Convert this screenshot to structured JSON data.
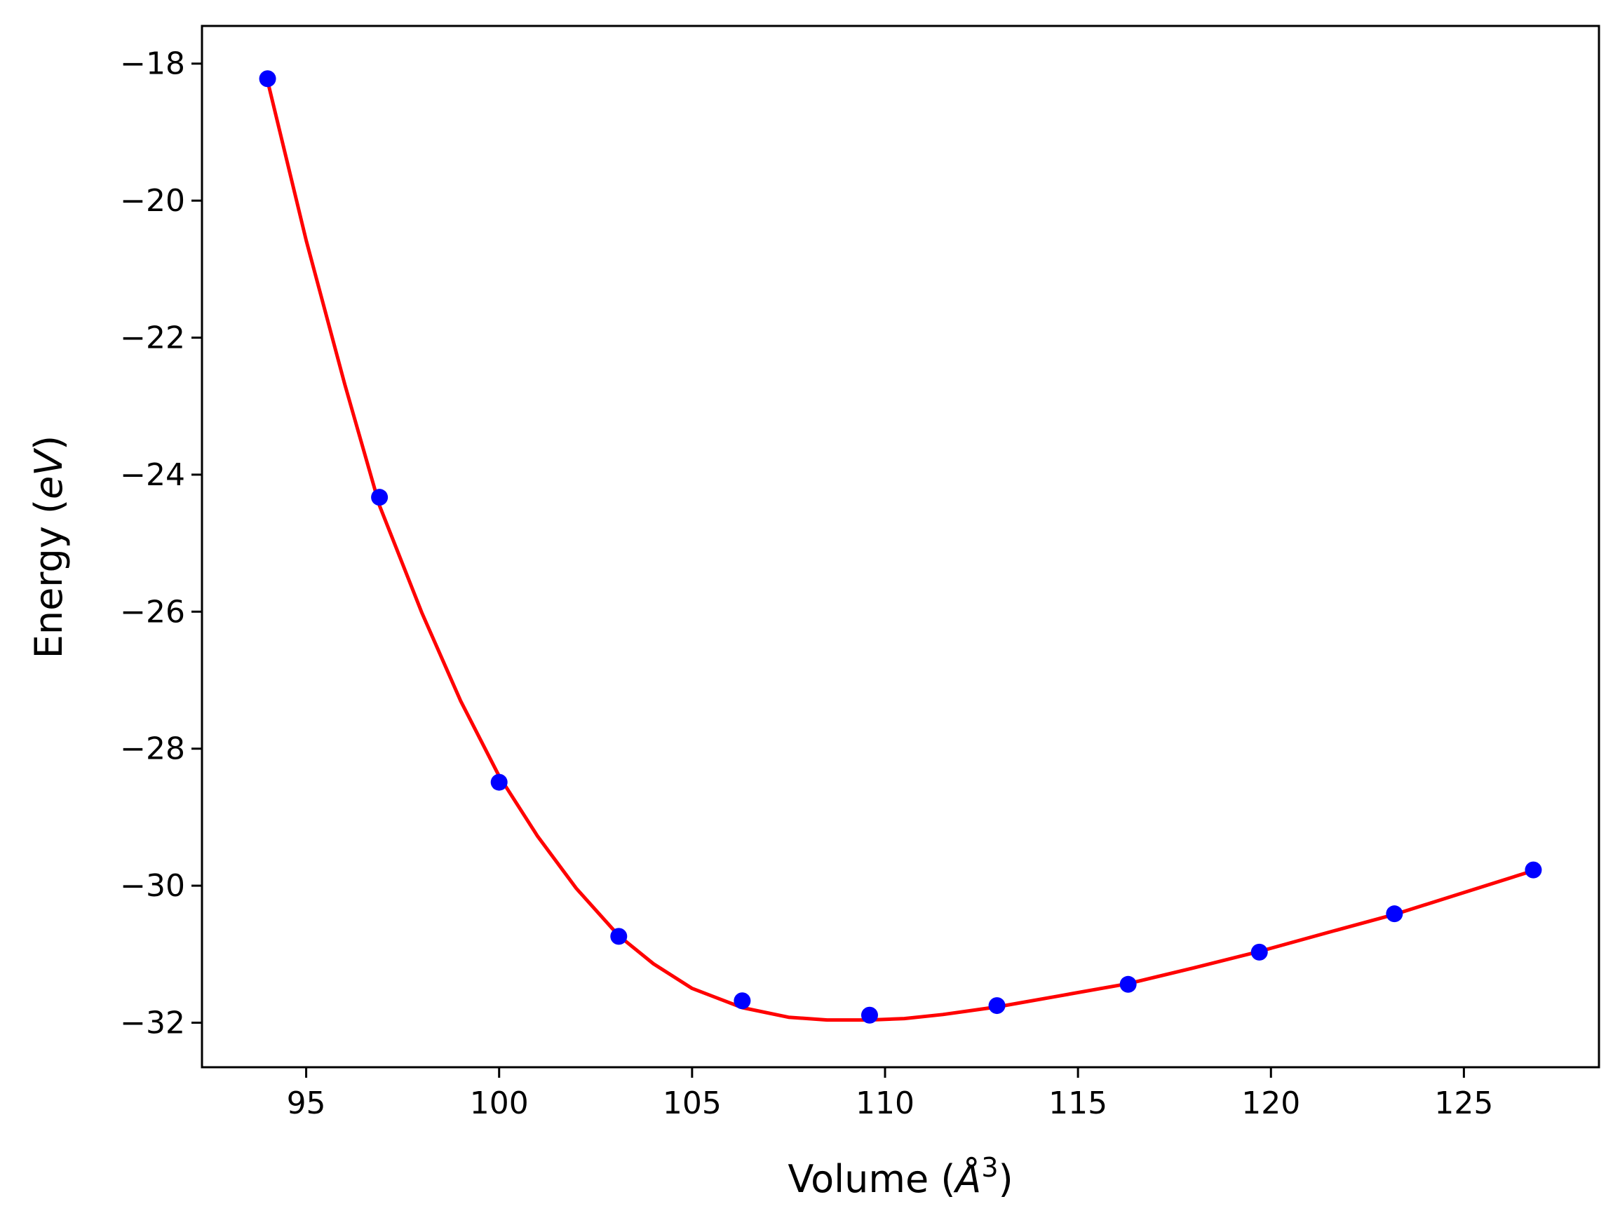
{
  "chart_data": {
    "type": "scatter",
    "title": "",
    "xlabel": "Volume (",
    "xlabel_symbol": "Å",
    "xlabel_exp": "3",
    "xlabel_close": ")",
    "ylabel": "Energy (",
    "ylabel_symbol": "eV",
    "ylabel_close": ")",
    "xlim": [
      92.3,
      128.5
    ],
    "ylim": [
      -32.65,
      -17.45
    ],
    "xticks": [
      95,
      100,
      105,
      110,
      115,
      120,
      125
    ],
    "xtick_labels": [
      "95",
      "100",
      "105",
      "110",
      "115",
      "120",
      "125"
    ],
    "yticks": [
      -18,
      -20,
      -22,
      -24,
      -26,
      -28,
      -30,
      -32
    ],
    "ytick_labels": [
      "−18",
      "−20",
      "−22",
      "−24",
      "−26",
      "−28",
      "−30",
      "−32"
    ],
    "grid": false,
    "legend": "none",
    "series": [
      {
        "kind": "points",
        "color": "#0000ff",
        "x": [
          94.0,
          96.9,
          100.0,
          103.1,
          106.3,
          109.6,
          112.9,
          116.3,
          119.7,
          123.2,
          126.8
        ],
        "y": [
          -18.22,
          -24.33,
          -28.49,
          -30.74,
          -31.68,
          -31.89,
          -31.75,
          -31.44,
          -30.97,
          -30.41,
          -29.77
        ]
      },
      {
        "kind": "fit-line",
        "color": "#ff0000",
        "x": [
          94.0,
          95.0,
          96.0,
          96.9,
          98.0,
          99.0,
          100.0,
          101.0,
          102.0,
          103.1,
          104.0,
          105.0,
          106.3,
          107.5,
          108.5,
          109.6,
          110.5,
          111.5,
          112.9,
          114.5,
          116.3,
          118.0,
          119.7,
          121.5,
          123.2,
          125.0,
          126.8
        ],
        "y": [
          -18.25,
          -20.58,
          -22.68,
          -24.45,
          -26.02,
          -27.3,
          -28.4,
          -29.28,
          -30.04,
          -30.73,
          -31.14,
          -31.5,
          -31.78,
          -31.92,
          -31.96,
          -31.96,
          -31.94,
          -31.88,
          -31.77,
          -31.61,
          -31.43,
          -31.2,
          -30.96,
          -30.68,
          -30.42,
          -30.1,
          -29.78
        ]
      }
    ]
  }
}
